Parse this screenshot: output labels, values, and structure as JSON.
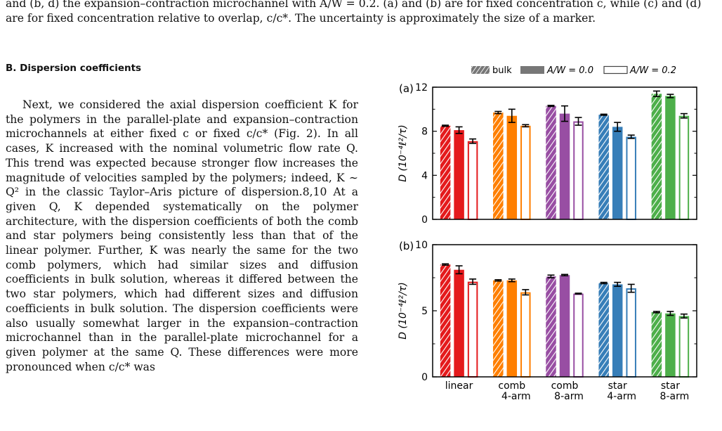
{
  "caption": "and (b, d) the expansion–contraction microchannel with A/W = 0.2. (a) and (b) are for fixed concentration c, while (c) and (d) are for fixed concentration relative to overlap, c/c*. The uncertainty is approximately the size of a marker.",
  "section_heading": "B.   Dispersion coefficients",
  "paragraph": "Next, we considered the axial dispersion coefficient K for the polymers in the parallel-plate and expansion–contraction microchannels at either fixed c or fixed c/c* (Fig. 2). In all cases, K increased with the nominal volumetric flow rate Q. This trend was expected because stronger flow increases the magnitude of velocities sampled by the polymers; indeed, K ∼ Q² in the classic Taylor–Aris picture of dispersion.8,10 At a given Q, K depended systematically on the polymer architecture, with the dispersion coefficients of both the comb and star polymers being consistently less than that of the linear polymer. Further, K was nearly the same for the two comb polymers, which had similar sizes and diffusion coefficients in bulk solution, whereas it differed between the two star polymers, which had different sizes and diffusion coefficients in bulk solution. The dispersion coefficients were also usually somewhat larger in the expansion–contraction microchannel than in the parallel-plate microchannel for a given polymer at the same Q. These differences were more pronounced when c/c* was",
  "colors": {
    "linear": "#e41a1c",
    "comb4": "#ff7f00",
    "comb8": "#984ea3",
    "star4": "#377eb8",
    "star8": "#4daf4a"
  },
  "chart_data": [
    {
      "type": "bar",
      "panel_label": "(a)",
      "ylabel": "D (10⁻⁴ℓ²/τ)",
      "ylim": [
        0,
        12
      ],
      "yticks": [
        0,
        4,
        8,
        12
      ],
      "categories": [
        "linear",
        "comb\n4-arm",
        "comb\n8-arm",
        "star\n4-arm",
        "star\n8-arm"
      ],
      "legend": [
        "bulk",
        "A/W = 0.0",
        "A/W = 0.2"
      ],
      "series": [
        {
          "name": "bulk",
          "values": [
            8.5,
            9.7,
            10.3,
            9.5,
            11.4
          ],
          "errors": [
            0.05,
            0.1,
            0.05,
            0.05,
            0.25
          ]
        },
        {
          "name": "A/W = 0.0",
          "values": [
            8.1,
            9.4,
            9.6,
            8.4,
            11.2
          ],
          "errors": [
            0.3,
            0.6,
            0.7,
            0.4,
            0.15
          ]
        },
        {
          "name": "A/W = 0.2",
          "values": [
            7.1,
            8.5,
            8.9,
            7.5,
            9.4
          ],
          "errors": [
            0.2,
            0.1,
            0.35,
            0.15,
            0.2
          ]
        }
      ]
    },
    {
      "type": "bar",
      "panel_label": "(b)",
      "ylabel": "D (10⁻⁴ℓ²/τ)",
      "ylim": [
        0,
        10
      ],
      "yticks": [
        0,
        5,
        10
      ],
      "categories": [
        "linear",
        "comb\n4-arm",
        "comb\n8-arm",
        "star\n4-arm",
        "star\n8-arm"
      ],
      "series": [
        {
          "name": "bulk",
          "values": [
            8.5,
            7.3,
            7.6,
            7.1,
            4.9
          ],
          "errors": [
            0.05,
            0.05,
            0.1,
            0.05,
            0.05
          ]
        },
        {
          "name": "A/W = 0.0",
          "values": [
            8.1,
            7.3,
            7.7,
            7.0,
            4.8
          ],
          "errors": [
            0.3,
            0.1,
            0.05,
            0.15,
            0.15
          ]
        },
        {
          "name": "A/W = 0.2",
          "values": [
            7.2,
            6.4,
            6.3,
            6.7,
            4.6
          ],
          "errors": [
            0.2,
            0.2,
            0.03,
            0.3,
            0.15
          ]
        }
      ]
    }
  ]
}
